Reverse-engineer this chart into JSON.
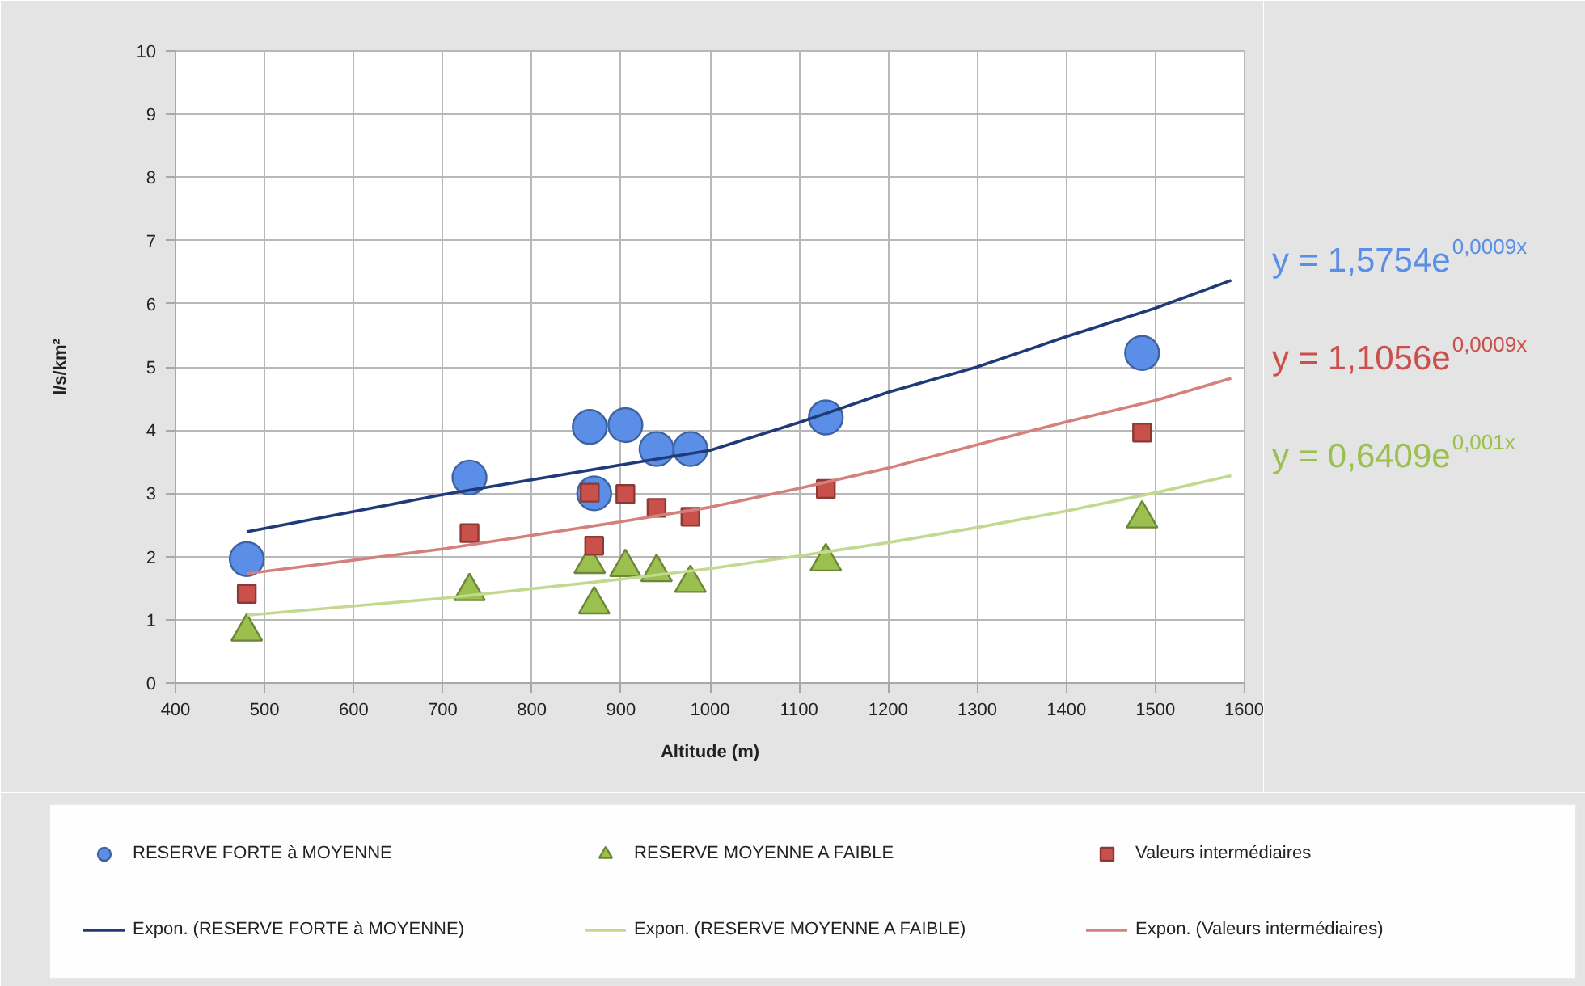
{
  "chart_data": {
    "type": "scatter",
    "xlabel": "Altitude (m)",
    "ylabel": "l/s/km²",
    "x": [
      480,
      730,
      865,
      870,
      905,
      940,
      978,
      1130,
      1485
    ],
    "xlim": [
      400,
      1600
    ],
    "xticks": [
      400,
      500,
      600,
      700,
      800,
      900,
      1000,
      1100,
      1200,
      1300,
      1400,
      1500,
      1600
    ],
    "ylim": [
      0,
      10
    ],
    "yticks": [
      0,
      1,
      2,
      3,
      4,
      5,
      6,
      7,
      8,
      9,
      10
    ],
    "grid": true,
    "legend": "bottom",
    "series": [
      {
        "name": "RESERVE FORTE à MOYENNE",
        "color": "#5b8ee6",
        "marker": "circle",
        "values": [
          1.96,
          3.25,
          4.05,
          3.0,
          4.08,
          3.7,
          3.7,
          4.2,
          5.22
        ]
      },
      {
        "name": "RESERVE MOYENNE A FAIBLE",
        "color": "#9bc04f",
        "marker": "triangle",
        "values": [
          0.81,
          1.45,
          1.88,
          1.24,
          1.83,
          1.75,
          1.58,
          1.92,
          2.6
        ]
      },
      {
        "name": "Valeurs intermédiaires",
        "color": "#c9504b",
        "marker": "square",
        "values": [
          1.41,
          2.37,
          3.01,
          2.17,
          2.99,
          2.77,
          2.63,
          3.07,
          3.96
        ]
      },
      {
        "name": "Expon. (RESERVE FORTE à MOYENNE)",
        "type": "line",
        "color": "#1f3a78",
        "x": [
          480,
          700,
          900,
          1000,
          1100,
          1200,
          1300,
          1400,
          1500,
          1585
        ],
        "values": [
          2.39,
          2.98,
          3.45,
          3.68,
          4.12,
          4.6,
          5.0,
          5.48,
          5.93,
          6.37
        ]
      },
      {
        "name": "Expon. (RESERVE MOYENNE A FAIBLE)",
        "type": "line",
        "color": "#c3d98f",
        "x": [
          480,
          700,
          900,
          1000,
          1100,
          1200,
          1300,
          1400,
          1500,
          1585
        ],
        "values": [
          1.07,
          1.34,
          1.64,
          1.81,
          2.01,
          2.22,
          2.46,
          2.72,
          3.01,
          3.28
        ]
      },
      {
        "name": "Expon. (Valeurs intermédiaires)",
        "type": "line",
        "color": "#d4807c",
        "x": [
          480,
          700,
          900,
          1000,
          1100,
          1200,
          1300,
          1400,
          1500,
          1585
        ],
        "values": [
          1.73,
          2.12,
          2.55,
          2.78,
          3.08,
          3.4,
          3.77,
          4.13,
          4.47,
          4.82
        ]
      }
    ],
    "annotations": [
      "y = 1,5754e$^{0,0009x}$",
      "y = 1,1056e$^{0,0009x}$",
      "y = 0,6409e$^{0,001x}$"
    ]
  }
}
